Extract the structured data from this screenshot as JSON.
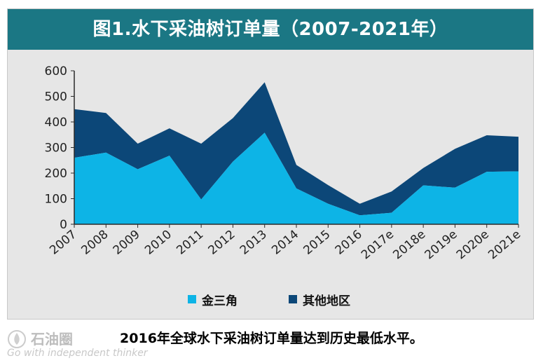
{
  "title": "图1.水下采油树订单量（2007-2021年）",
  "caption": "2016年全球水下采油树订单量达到历史最低水平。",
  "watermark": {
    "name": "石油圈",
    "slogan": "Go with independent thinker"
  },
  "colors": {
    "banner": "#1b7784",
    "golden_triangle": "#0db4e6",
    "other_regions": "#0c4778",
    "panel": "#e6e6e6"
  },
  "chart_data": {
    "type": "area",
    "stacked": true,
    "categories": [
      "2007",
      "2008",
      "2009",
      "2010",
      "2011",
      "2012",
      "2013",
      "2014",
      "2015",
      "2016",
      "2017e",
      "2018e",
      "2019e",
      "2020e",
      "2021e"
    ],
    "series": [
      {
        "name": "金三角",
        "values": [
          260,
          280,
          215,
          268,
          97,
          245,
          358,
          140,
          80,
          35,
          45,
          152,
          143,
          205,
          207
        ]
      },
      {
        "name": "其他地区",
        "values": [
          190,
          155,
          100,
          107,
          218,
          170,
          197,
          92,
          73,
          45,
          83,
          68,
          152,
          143,
          135
        ]
      }
    ],
    "ylim": [
      0,
      600
    ],
    "yticks": [
      0,
      100,
      200,
      300,
      400,
      500,
      600
    ],
    "grid": false,
    "legend": "bottom"
  }
}
